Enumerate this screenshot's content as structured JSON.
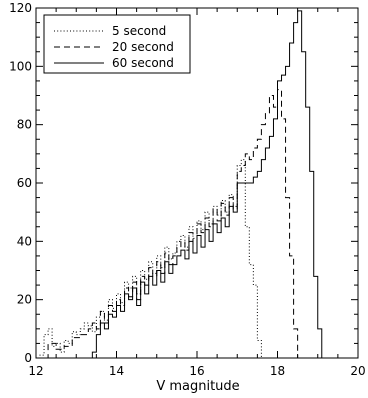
{
  "chart_data": {
    "type": "histogram",
    "xlabel": "V magnitude",
    "ylabel": "",
    "xlim": [
      12,
      20
    ],
    "ylim": [
      0,
      120
    ],
    "xticks": [
      12,
      14,
      16,
      18,
      20
    ],
    "yticks": [
      0,
      20,
      40,
      60,
      80,
      100,
      120
    ],
    "grid": false,
    "legend_position": "top-left",
    "series": [
      {
        "name": "5 second",
        "style": "dotted",
        "steps": [
          [
            12.0,
            0
          ],
          [
            12.1,
            1
          ],
          [
            12.2,
            8
          ],
          [
            12.3,
            10
          ],
          [
            12.4,
            4
          ],
          [
            12.5,
            5
          ],
          [
            12.6,
            2
          ],
          [
            12.7,
            6
          ],
          [
            12.8,
            5
          ],
          [
            12.9,
            9
          ],
          [
            13.0,
            8
          ],
          [
            13.1,
            10
          ],
          [
            13.2,
            12
          ],
          [
            13.3,
            11
          ],
          [
            13.4,
            9
          ],
          [
            13.5,
            14
          ],
          [
            13.6,
            16
          ],
          [
            13.7,
            13
          ],
          [
            13.8,
            20
          ],
          [
            13.9,
            17
          ],
          [
            14.0,
            22
          ],
          [
            14.1,
            19
          ],
          [
            14.2,
            26
          ],
          [
            14.3,
            24
          ],
          [
            14.4,
            28
          ],
          [
            14.5,
            22
          ],
          [
            14.6,
            30
          ],
          [
            14.7,
            27
          ],
          [
            14.8,
            33
          ],
          [
            14.9,
            29
          ],
          [
            15.0,
            35
          ],
          [
            15.1,
            31
          ],
          [
            15.2,
            38
          ],
          [
            15.3,
            34
          ],
          [
            15.4,
            36
          ],
          [
            15.5,
            40
          ],
          [
            15.6,
            42
          ],
          [
            15.7,
            38
          ],
          [
            15.8,
            45
          ],
          [
            15.9,
            41
          ],
          [
            16.0,
            47
          ],
          [
            16.1,
            44
          ],
          [
            16.2,
            50
          ],
          [
            16.3,
            46
          ],
          [
            16.4,
            52
          ],
          [
            16.5,
            49
          ],
          [
            16.6,
            54
          ],
          [
            16.7,
            50
          ],
          [
            16.8,
            56
          ],
          [
            16.9,
            52
          ],
          [
            17.0,
            66
          ],
          [
            17.1,
            68
          ],
          [
            17.2,
            45
          ],
          [
            17.3,
            32
          ],
          [
            17.4,
            25
          ],
          [
            17.5,
            6
          ],
          [
            17.6,
            0
          ]
        ]
      },
      {
        "name": "20 second",
        "style": "dashed",
        "steps": [
          [
            12.0,
            0
          ],
          [
            12.3,
            5
          ],
          [
            12.5,
            3
          ],
          [
            12.7,
            4
          ],
          [
            12.9,
            7
          ],
          [
            13.1,
            8
          ],
          [
            13.3,
            10
          ],
          [
            13.4,
            12
          ],
          [
            13.5,
            10
          ],
          [
            13.6,
            16
          ],
          [
            13.7,
            12
          ],
          [
            13.8,
            18
          ],
          [
            13.9,
            16
          ],
          [
            14.0,
            20
          ],
          [
            14.1,
            18
          ],
          [
            14.2,
            24
          ],
          [
            14.3,
            21
          ],
          [
            14.4,
            26
          ],
          [
            14.5,
            20
          ],
          [
            14.6,
            28
          ],
          [
            14.7,
            25
          ],
          [
            14.8,
            31
          ],
          [
            14.9,
            28
          ],
          [
            15.0,
            33
          ],
          [
            15.1,
            29
          ],
          [
            15.2,
            36
          ],
          [
            15.3,
            32
          ],
          [
            15.4,
            35
          ],
          [
            15.5,
            38
          ],
          [
            15.6,
            40
          ],
          [
            15.7,
            37
          ],
          [
            15.8,
            43
          ],
          [
            15.9,
            39
          ],
          [
            16.0,
            46
          ],
          [
            16.1,
            43
          ],
          [
            16.2,
            48
          ],
          [
            16.3,
            45
          ],
          [
            16.4,
            51
          ],
          [
            16.5,
            47
          ],
          [
            16.6,
            53
          ],
          [
            16.7,
            49
          ],
          [
            16.8,
            55
          ],
          [
            16.9,
            51
          ],
          [
            17.0,
            64
          ],
          [
            17.1,
            66
          ],
          [
            17.2,
            70
          ],
          [
            17.3,
            68
          ],
          [
            17.4,
            72
          ],
          [
            17.5,
            75
          ],
          [
            17.6,
            80
          ],
          [
            17.7,
            84
          ],
          [
            17.8,
            90
          ],
          [
            17.9,
            86
          ],
          [
            18.0,
            92
          ],
          [
            18.1,
            82
          ],
          [
            18.2,
            55
          ],
          [
            18.3,
            35
          ],
          [
            18.4,
            10
          ],
          [
            18.5,
            0
          ]
        ]
      },
      {
        "name": "60 second",
        "style": "solid",
        "steps": [
          [
            13.3,
            0
          ],
          [
            13.4,
            2
          ],
          [
            13.5,
            8
          ],
          [
            13.6,
            12
          ],
          [
            13.7,
            10
          ],
          [
            13.8,
            15
          ],
          [
            13.9,
            14
          ],
          [
            14.0,
            18
          ],
          [
            14.1,
            16
          ],
          [
            14.2,
            22
          ],
          [
            14.3,
            20
          ],
          [
            14.4,
            24
          ],
          [
            14.5,
            18
          ],
          [
            14.6,
            26
          ],
          [
            14.7,
            22
          ],
          [
            14.8,
            28
          ],
          [
            14.9,
            25
          ],
          [
            15.0,
            30
          ],
          [
            15.1,
            26
          ],
          [
            15.2,
            33
          ],
          [
            15.3,
            29
          ],
          [
            15.4,
            32
          ],
          [
            15.5,
            35
          ],
          [
            15.6,
            37
          ],
          [
            15.7,
            34
          ],
          [
            15.8,
            40
          ],
          [
            15.9,
            36
          ],
          [
            16.0,
            42
          ],
          [
            16.1,
            38
          ],
          [
            16.2,
            44
          ],
          [
            16.3,
            40
          ],
          [
            16.4,
            46
          ],
          [
            16.5,
            43
          ],
          [
            16.6,
            48
          ],
          [
            16.7,
            45
          ],
          [
            16.8,
            52
          ],
          [
            16.9,
            50
          ],
          [
            17.0,
            60
          ],
          [
            17.1,
            60
          ],
          [
            17.2,
            60
          ],
          [
            17.3,
            60
          ],
          [
            17.4,
            62
          ],
          [
            17.5,
            64
          ],
          [
            17.6,
            68
          ],
          [
            17.7,
            72
          ],
          [
            17.8,
            76
          ],
          [
            17.9,
            82
          ],
          [
            18.0,
            95
          ],
          [
            18.1,
            97
          ],
          [
            18.2,
            100
          ],
          [
            18.3,
            108
          ],
          [
            18.4,
            115
          ],
          [
            18.5,
            119
          ],
          [
            18.6,
            105
          ],
          [
            18.7,
            86
          ],
          [
            18.8,
            64
          ],
          [
            18.9,
            28
          ],
          [
            19.0,
            10
          ],
          [
            19.1,
            0
          ]
        ]
      }
    ]
  }
}
